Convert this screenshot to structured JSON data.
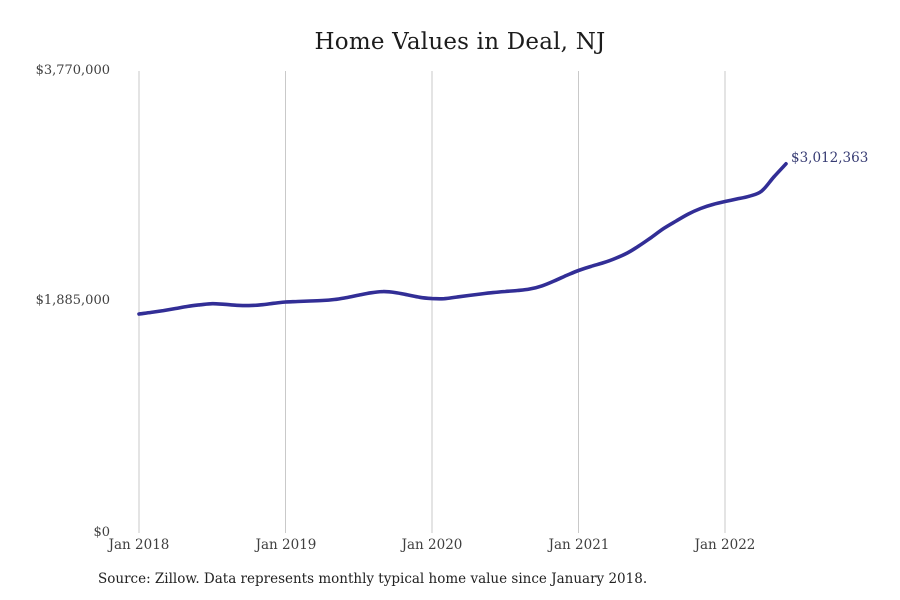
{
  "title": "Home Values in Deal, NJ",
  "source_note": "Source: Zillow. Data represents monthly typical home value since January 2018.",
  "colors": {
    "line": "#322e96",
    "grid": "#c9c9c9",
    "title_text": "#1c1c1c",
    "tick_text": "#3f3f3f",
    "end_label_text": "#373c73"
  },
  "chart_data": {
    "type": "line",
    "title": "Home Values in Deal, NJ",
    "xlabel": "",
    "ylabel": "",
    "ylim": [
      0,
      3770000
    ],
    "grid": "vertical-only",
    "legend": "none",
    "y_ticks": [
      "$0",
      "$1,885,000",
      "$3,770,000"
    ],
    "y_tick_values": [
      0,
      1885000,
      3770000
    ],
    "x_ticks": [
      "Jan 2018",
      "Jan 2019",
      "Jan 2020",
      "Jan 2021",
      "Jan 2022"
    ],
    "end_label": "$3,012,363",
    "end_value": 3012363,
    "x": [
      "2018-01",
      "2018-02",
      "2018-03",
      "2018-04",
      "2018-05",
      "2018-06",
      "2018-07",
      "2018-08",
      "2018-09",
      "2018-10",
      "2018-11",
      "2018-12",
      "2019-01",
      "2019-02",
      "2019-03",
      "2019-04",
      "2019-05",
      "2019-06",
      "2019-07",
      "2019-08",
      "2019-09",
      "2019-10",
      "2019-11",
      "2019-12",
      "2020-01",
      "2020-02",
      "2020-03",
      "2020-04",
      "2020-05",
      "2020-06",
      "2020-07",
      "2020-08",
      "2020-09",
      "2020-10",
      "2020-11",
      "2020-12",
      "2021-01",
      "2021-02",
      "2021-03",
      "2021-04",
      "2021-05",
      "2021-06",
      "2021-07",
      "2021-08",
      "2021-09",
      "2021-10",
      "2021-11",
      "2021-12",
      "2022-01",
      "2022-02",
      "2022-03",
      "2022-04",
      "2022-05",
      "2022-06"
    ],
    "values": [
      1787000,
      1800000,
      1815000,
      1832000,
      1849000,
      1862000,
      1871000,
      1866000,
      1858000,
      1856000,
      1862000,
      1874000,
      1885000,
      1889000,
      1893000,
      1897000,
      1905000,
      1921000,
      1941000,
      1960000,
      1970000,
      1962000,
      1943000,
      1923000,
      1913000,
      1912000,
      1925000,
      1938000,
      1950000,
      1962000,
      1971000,
      1979000,
      1991000,
      2016000,
      2056000,
      2101000,
      2142000,
      2175000,
      2204000,
      2240000,
      2285000,
      2346000,
      2415000,
      2486000,
      2546000,
      2603000,
      2648000,
      2681000,
      2705000,
      2726000,
      2748000,
      2790000,
      2905000,
      3012363
    ]
  }
}
